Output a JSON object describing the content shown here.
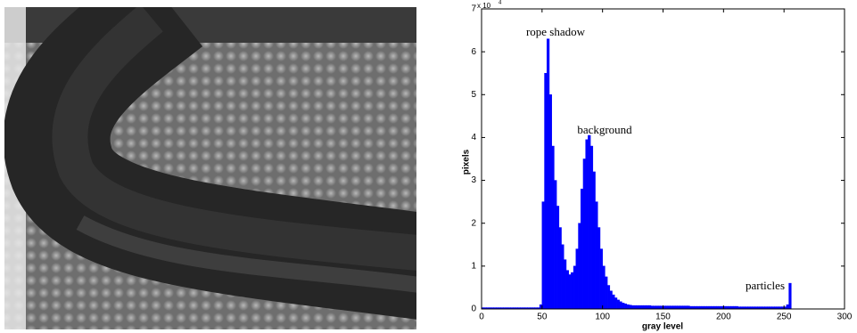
{
  "chart_data": {
    "type": "histogram",
    "xlabel": "gray level",
    "ylabel": "pixels",
    "y_multiplier": "x 10",
    "y_multiplier_exp": "4",
    "annotations": [
      "rope shadow",
      "background",
      "particles"
    ],
    "color": "#0000ff",
    "xlim": [
      0,
      300
    ],
    "ylim": [
      0,
      7
    ],
    "xticks": [
      0,
      50,
      100,
      150,
      200,
      250,
      300
    ],
    "yticks": [
      0,
      1,
      2,
      3,
      4,
      5,
      6,
      7
    ],
    "bins": [
      0,
      2,
      4,
      6,
      8,
      10,
      12,
      14,
      16,
      18,
      20,
      22,
      24,
      26,
      28,
      30,
      32,
      34,
      36,
      38,
      40,
      42,
      44,
      46,
      48,
      50,
      52,
      54,
      56,
      58,
      60,
      62,
      64,
      66,
      68,
      70,
      72,
      74,
      76,
      78,
      80,
      82,
      84,
      86,
      88,
      90,
      92,
      94,
      96,
      98,
      100,
      102,
      104,
      106,
      108,
      110,
      112,
      114,
      116,
      118,
      120,
      122,
      124,
      126,
      128,
      130,
      132,
      134,
      136,
      138,
      140,
      142,
      144,
      146,
      148,
      150,
      152,
      154,
      156,
      158,
      160,
      162,
      164,
      166,
      168,
      170,
      172,
      174,
      176,
      178,
      180,
      182,
      184,
      186,
      188,
      190,
      192,
      194,
      196,
      198,
      200,
      202,
      204,
      206,
      208,
      210,
      212,
      214,
      216,
      218,
      220,
      222,
      224,
      226,
      228,
      230,
      232,
      234,
      236,
      238,
      240,
      242,
      244,
      246,
      248,
      250,
      252,
      254,
      256
    ],
    "values": [
      0.03,
      0.03,
      0.03,
      0.03,
      0.03,
      0.03,
      0.03,
      0.03,
      0.03,
      0.03,
      0.03,
      0.03,
      0.03,
      0.03,
      0.03,
      0.03,
      0.03,
      0.03,
      0.03,
      0.03,
      0.03,
      0.03,
      0.03,
      0.03,
      0.1,
      2.5,
      5.5,
      6.3,
      5.0,
      3.8,
      3.0,
      2.4,
      1.9,
      1.5,
      1.15,
      0.9,
      0.8,
      0.85,
      1.0,
      1.4,
      2.0,
      2.8,
      3.5,
      3.95,
      4.05,
      3.8,
      3.2,
      2.5,
      1.9,
      1.4,
      1.0,
      0.75,
      0.55,
      0.42,
      0.33,
      0.26,
      0.21,
      0.17,
      0.14,
      0.12,
      0.1,
      0.09,
      0.08,
      0.08,
      0.08,
      0.08,
      0.08,
      0.08,
      0.08,
      0.08,
      0.07,
      0.07,
      0.07,
      0.07,
      0.07,
      0.07,
      0.07,
      0.07,
      0.07,
      0.07,
      0.07,
      0.07,
      0.07,
      0.07,
      0.07,
      0.07,
      0.06,
      0.06,
      0.06,
      0.06,
      0.06,
      0.06,
      0.06,
      0.06,
      0.06,
      0.06,
      0.06,
      0.06,
      0.06,
      0.06,
      0.06,
      0.06,
      0.06,
      0.06,
      0.06,
      0.06,
      0.05,
      0.05,
      0.05,
      0.05,
      0.05,
      0.05,
      0.05,
      0.05,
      0.05,
      0.05,
      0.05,
      0.05,
      0.05,
      0.05,
      0.05,
      0.05,
      0.05,
      0.05,
      0.05,
      0.05,
      0.1,
      0.6
    ]
  }
}
